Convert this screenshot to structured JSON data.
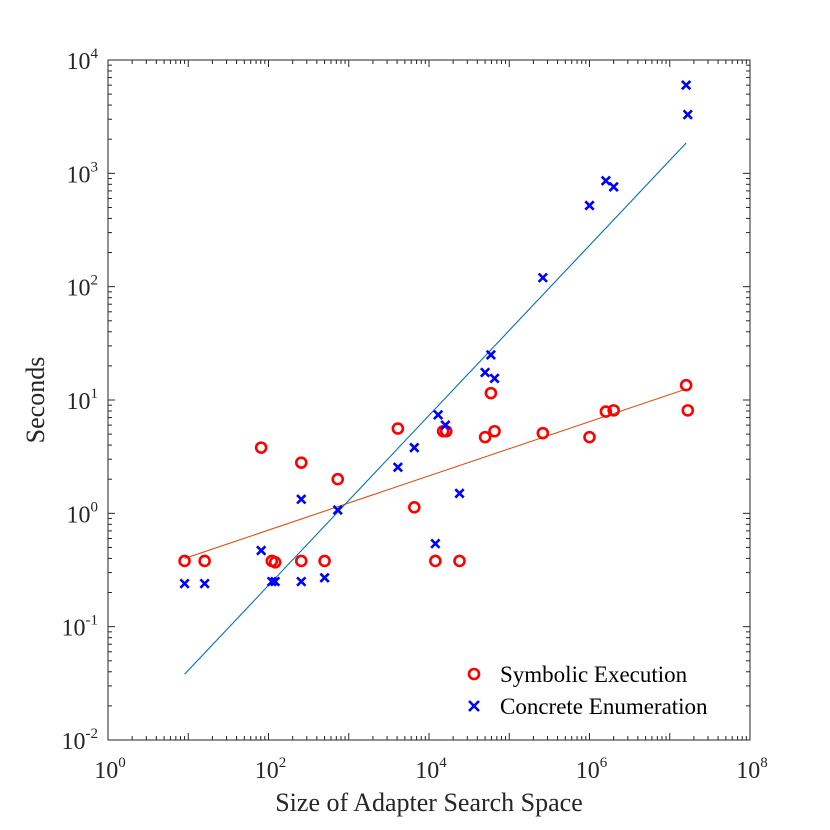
{
  "chart_data": {
    "type": "scatter",
    "title": "",
    "xlabel": "Size of Adapter Search Space",
    "ylabel": "Seconds",
    "xscale": "log",
    "yscale": "log",
    "xlim": [
      1,
      100000000
    ],
    "ylim": [
      0.01,
      10000
    ],
    "x_ticks": [
      {
        "base": "10",
        "exp": "0"
      },
      {
        "base": "10",
        "exp": "2"
      },
      {
        "base": "10",
        "exp": "4"
      },
      {
        "base": "10",
        "exp": "6"
      },
      {
        "base": "10",
        "exp": "8"
      }
    ],
    "y_ticks": [
      {
        "base": "10",
        "exp": "-2"
      },
      {
        "base": "10",
        "exp": "-1"
      },
      {
        "base": "10",
        "exp": "0"
      },
      {
        "base": "10",
        "exp": "1"
      },
      {
        "base": "10",
        "exp": "2"
      },
      {
        "base": "10",
        "exp": "3"
      },
      {
        "base": "10",
        "exp": "4"
      }
    ],
    "legend_position": "bottom-right",
    "series": [
      {
        "name": "Symbolic Execution",
        "marker": "circle",
        "color": "#ff0000",
        "points": [
          [
            9,
            0.38
          ],
          [
            16,
            0.38
          ],
          [
            81,
            3.8
          ],
          [
            110,
            0.38
          ],
          [
            121,
            0.37
          ],
          [
            256,
            0.38
          ],
          [
            256,
            2.8
          ],
          [
            500,
            0.38
          ],
          [
            729,
            2.0
          ],
          [
            4096,
            5.6
          ],
          [
            6561,
            1.13
          ],
          [
            12000,
            0.38
          ],
          [
            15000,
            5.3
          ],
          [
            16384,
            5.3
          ],
          [
            24000,
            0.38
          ],
          [
            50000,
            4.7
          ],
          [
            59049,
            11.5
          ],
          [
            65536,
            5.3
          ],
          [
            262144,
            5.1
          ],
          [
            1000000,
            4.7
          ],
          [
            1600000,
            7.9
          ],
          [
            2000000,
            8.1
          ],
          [
            16000000,
            13.5
          ],
          [
            16777216,
            8.1
          ]
        ]
      },
      {
        "name": "Concrete Enumeration",
        "marker": "x",
        "color": "#0000ff",
        "points": [
          [
            9,
            0.24
          ],
          [
            16,
            0.24
          ],
          [
            81,
            0.47
          ],
          [
            110,
            0.25
          ],
          [
            121,
            0.25
          ],
          [
            256,
            1.33
          ],
          [
            256,
            0.25
          ],
          [
            500,
            0.27
          ],
          [
            729,
            1.07
          ],
          [
            4096,
            2.55
          ],
          [
            6561,
            3.8
          ],
          [
            12000,
            0.54
          ],
          [
            13000,
            7.4
          ],
          [
            16000,
            6.0
          ],
          [
            24000,
            1.5
          ],
          [
            50000,
            17.5
          ],
          [
            59049,
            25.0
          ],
          [
            65536,
            15.5
          ],
          [
            262144,
            120
          ],
          [
            1000000,
            520
          ],
          [
            1600000,
            860
          ],
          [
            2000000,
            760
          ],
          [
            16000000,
            6000
          ],
          [
            16777216,
            3300
          ]
        ]
      }
    ],
    "fit_lines": [
      {
        "series": "Symbolic Execution",
        "color": "#d95319",
        "x": [
          9,
          16000000
        ],
        "y": [
          0.4,
          12.5
        ]
      },
      {
        "series": "Concrete Enumeration",
        "color": "#0072bd",
        "x": [
          9,
          16000000
        ],
        "y": [
          0.038,
          1850
        ]
      }
    ]
  }
}
